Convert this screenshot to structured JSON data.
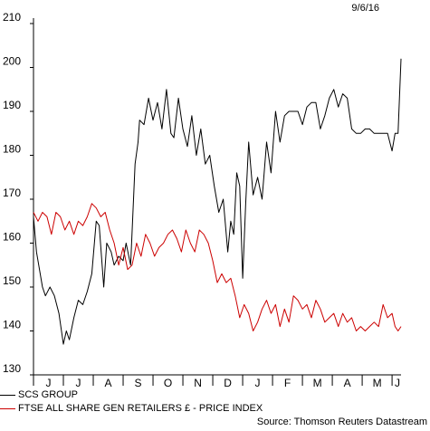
{
  "date_stamp": "9/6/16",
  "source": "Source: Thomson Reuters Datastream",
  "colors": {
    "series_1": "#000000",
    "series_2": "#cc0000"
  },
  "chart_data": {
    "type": "line",
    "title": "",
    "xlabel": "",
    "ylabel": "",
    "ylim": [
      130,
      210
    ],
    "yticks": [
      130,
      140,
      150,
      160,
      170,
      180,
      190,
      200,
      210
    ],
    "month_labels": [
      "J",
      "J",
      "A",
      "S",
      "O",
      "N",
      "D",
      "J",
      "F",
      "M",
      "A",
      "M",
      "J"
    ],
    "x_note": "x = month index from start of first J (June 2015) to end of chart (~June 9 2016)",
    "xlim": [
      0,
      12.3
    ],
    "grid": false,
    "legend_position": "bottom-left",
    "series": [
      {
        "name": "SCS GROUP",
        "color": "#000000",
        "x": [
          0,
          0.1,
          0.2,
          0.3,
          0.4,
          0.55,
          0.7,
          0.85,
          1.0,
          1.1,
          1.2,
          1.35,
          1.5,
          1.65,
          1.8,
          1.95,
          2.1,
          2.2,
          2.35,
          2.45,
          2.6,
          2.7,
          2.85,
          3.0,
          3.1,
          3.25,
          3.4,
          3.5,
          3.55,
          3.7,
          3.85,
          4.0,
          4.15,
          4.3,
          4.45,
          4.6,
          4.7,
          4.85,
          5.0,
          5.15,
          5.3,
          5.45,
          5.6,
          5.75,
          5.9,
          6.05,
          6.2,
          6.35,
          6.5,
          6.6,
          6.7,
          6.8,
          6.9,
          7.0,
          7.1,
          7.2,
          7.35,
          7.5,
          7.65,
          7.8,
          7.95,
          8.1,
          8.25,
          8.4,
          8.55,
          8.7,
          8.85,
          9.0,
          9.15,
          9.3,
          9.45,
          9.6,
          9.75,
          9.9,
          10.05,
          10.2,
          10.35,
          10.5,
          10.65,
          10.8,
          10.95,
          11.1,
          11.25,
          11.4,
          11.55,
          11.7,
          11.85,
          12.0,
          12.1,
          12.2,
          12.3
        ],
        "values": [
          166,
          158,
          154,
          150,
          148,
          150,
          148,
          144,
          137,
          140,
          138,
          143,
          147,
          146,
          149,
          153,
          165,
          164,
          150,
          160,
          158,
          155,
          157,
          156,
          160,
          155,
          178,
          183,
          188,
          187,
          193,
          188,
          192,
          186,
          195,
          185,
          184,
          193,
          186,
          182,
          189,
          180,
          186,
          178,
          180,
          173,
          167,
          170,
          158,
          165,
          162,
          176,
          173,
          152,
          169,
          183,
          171,
          175,
          170,
          183,
          176,
          190,
          183,
          189,
          190,
          190,
          190,
          187,
          191,
          192,
          192,
          186,
          189,
          193,
          195,
          191,
          194,
          193,
          186,
          185,
          185,
          186,
          186,
          185,
          185,
          185,
          185,
          181,
          185,
          185,
          202
        ]
      },
      {
        "name": "FTSE ALL SHARE GEN RETAILERS £ - PRICE INDEX",
        "color": "#cc0000",
        "x": [
          0,
          0.15,
          0.3,
          0.45,
          0.6,
          0.75,
          0.9,
          1.05,
          1.2,
          1.35,
          1.5,
          1.65,
          1.8,
          1.95,
          2.1,
          2.25,
          2.4,
          2.55,
          2.7,
          2.85,
          3.0,
          3.15,
          3.3,
          3.45,
          3.6,
          3.75,
          3.9,
          4.05,
          4.2,
          4.35,
          4.5,
          4.65,
          4.8,
          4.95,
          5.1,
          5.25,
          5.4,
          5.55,
          5.7,
          5.85,
          6.0,
          6.15,
          6.3,
          6.45,
          6.6,
          6.75,
          6.9,
          7.05,
          7.2,
          7.35,
          7.5,
          7.65,
          7.8,
          7.95,
          8.1,
          8.25,
          8.4,
          8.55,
          8.7,
          8.85,
          9.0,
          9.15,
          9.3,
          9.45,
          9.6,
          9.75,
          9.9,
          10.05,
          10.2,
          10.35,
          10.5,
          10.65,
          10.8,
          10.95,
          11.1,
          11.25,
          11.4,
          11.55,
          11.7,
          11.85,
          12.0,
          12.1,
          12.2,
          12.3
        ],
        "values": [
          167,
          165,
          167,
          166,
          162,
          167,
          166,
          163,
          165,
          162,
          165,
          164,
          166,
          169,
          168,
          166,
          167,
          163,
          160,
          155,
          159,
          154,
          155,
          160,
          157,
          162,
          160,
          157,
          159,
          160,
          162,
          163,
          161,
          158,
          163,
          160,
          158,
          163,
          162,
          160,
          156,
          151,
          153,
          151,
          152,
          148,
          143,
          146,
          144,
          140,
          142,
          145,
          147,
          144,
          146,
          141,
          145,
          142,
          148,
          147,
          145,
          146,
          143,
          147,
          145,
          142,
          143,
          144,
          141,
          144,
          142,
          143,
          140,
          141,
          140,
          141,
          142,
          141,
          146,
          143,
          144,
          141,
          140,
          141
        ]
      }
    ]
  }
}
